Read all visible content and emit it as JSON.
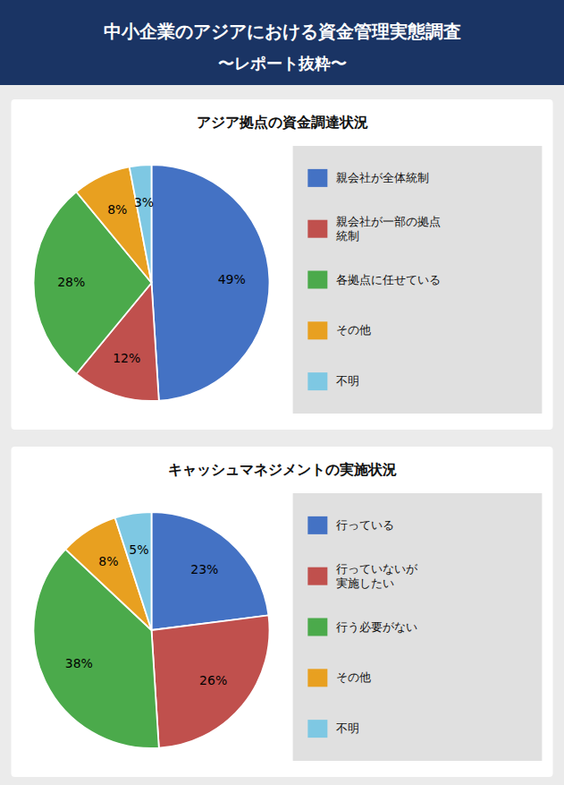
{
  "title": "中小企業のアジアにおける資金管理実態調査",
  "subtitle": "〜レポート抜粋〜",
  "chart_data": [
    {
      "type": "pie",
      "title": "アジア拠点の資金調達状況",
      "categories": [
        "親会社が全体統制",
        "親会社が一部の拠点\n統制",
        "各拠点に任せている",
        "その他",
        "不明"
      ],
      "values": [
        49,
        12,
        28,
        8,
        3
      ],
      "value_labels": [
        "49%",
        "12%",
        "28%",
        "8%",
        "3%"
      ],
      "colors": [
        "#4472c4",
        "#c0504d",
        "#4baa4b",
        "#e8a020",
        "#7ec8e3"
      ],
      "data_labels": true,
      "legend": "right"
    },
    {
      "type": "pie",
      "title": "キャッシュマネジメントの実施状況",
      "categories": [
        "行っている",
        "行っていないが\n実施したい",
        "行う必要がない",
        "その他",
        "不明"
      ],
      "values": [
        23,
        26,
        38,
        8,
        5
      ],
      "value_labels": [
        "23%",
        "26%",
        "38%",
        "8%",
        "5%"
      ],
      "colors": [
        "#4472c4",
        "#c0504d",
        "#4baa4b",
        "#e8a020",
        "#7ec8e3"
      ],
      "data_labels": true,
      "legend": "right"
    }
  ]
}
